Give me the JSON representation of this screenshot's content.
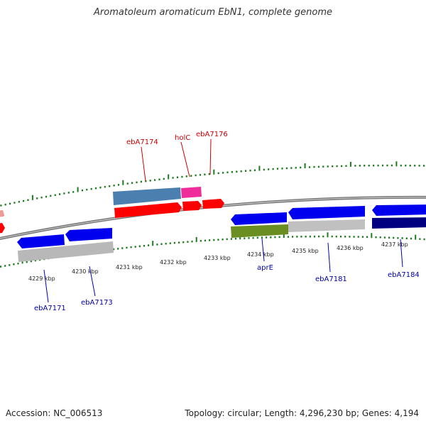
{
  "title": "Aromatoleum aromaticum EbN1, complete genome",
  "footer": {
    "accession": "Accession: NC_006513",
    "summary": "Topology: circular; Length: 4,296,230 bp; Genes: 4,194"
  },
  "colors": {
    "backbone": "#8a8a8a",
    "tick": "#1e7a1e",
    "forward_gene": "#ff0000",
    "reverse_gene": "#0000ee",
    "forward_label": "#cc0000",
    "reverse_label": "#0000aa"
  },
  "scale_labels": [
    "4229 kbp",
    "4230 kbp",
    "4231 kbp",
    "4232 kbp",
    "4233 kbp",
    "4234 kbp",
    "4235 kbp",
    "4236 kbp",
    "4237 kbp"
  ],
  "forward_gene_labels": [
    "ebA7174",
    "holC",
    "ebA7176"
  ],
  "reverse_gene_labels": [
    "ebA7171",
    "ebA7173",
    "aprE",
    "ebA7181",
    "ebA7184"
  ]
}
